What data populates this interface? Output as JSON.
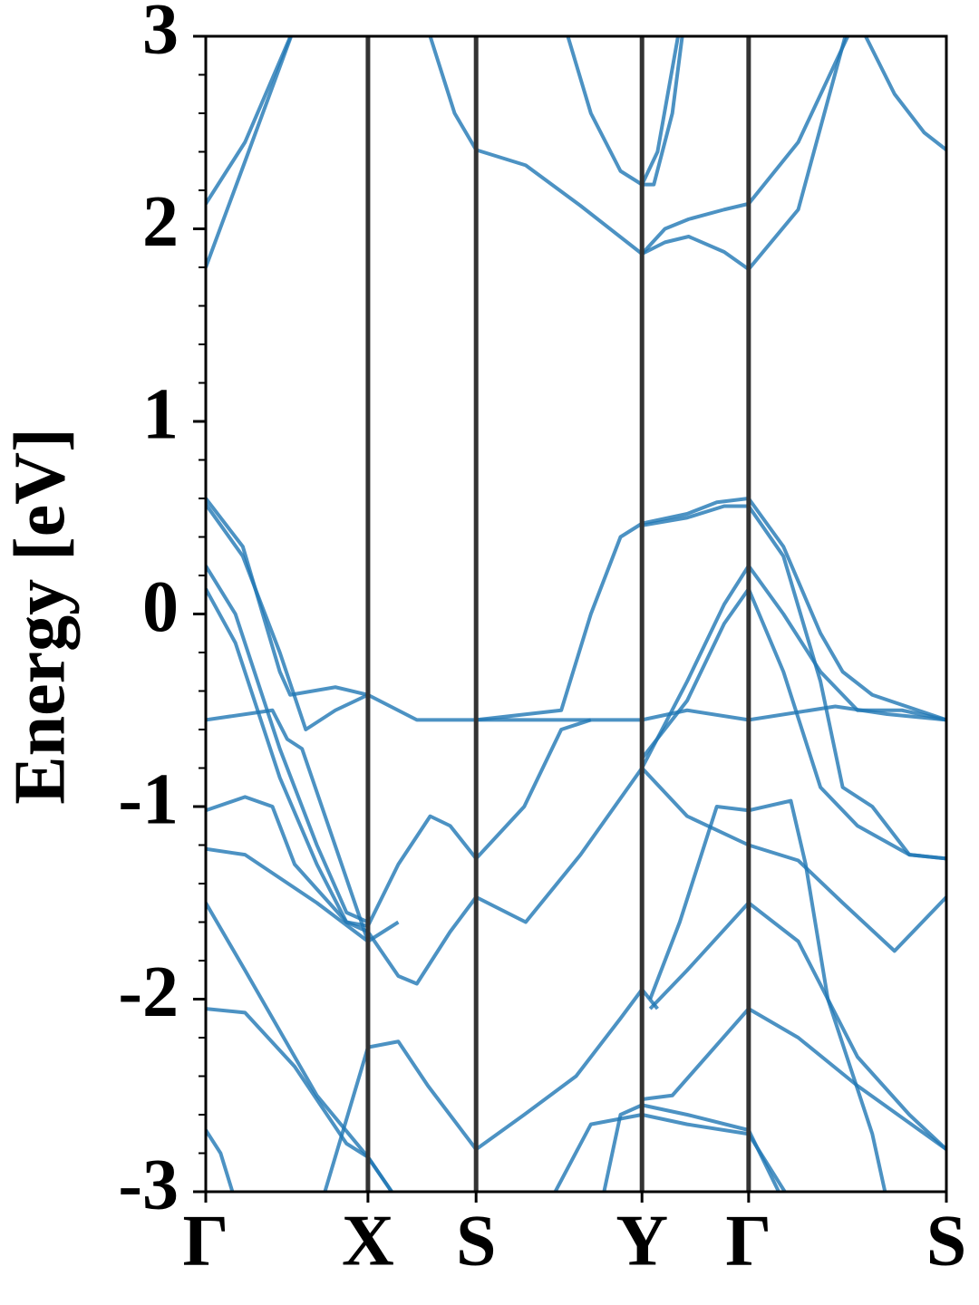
{
  "chart_data": {
    "type": "line",
    "ylabel": "Energy [eV]",
    "xlim": [
      0,
      1
    ],
    "ylim": [
      -3,
      3
    ],
    "xticks": [
      {
        "value": 0,
        "label": "Γ"
      },
      {
        "value": 0.219,
        "label": "X"
      },
      {
        "value": 0.365,
        "label": "S"
      },
      {
        "value": 0.589,
        "label": "Y"
      },
      {
        "value": 0.733,
        "label": "Γ"
      },
      {
        "value": 1,
        "label": "S"
      }
    ],
    "yticks": [
      -3,
      -2,
      -1,
      0,
      1,
      2,
      3
    ],
    "yminorticks": [
      -2.8,
      -2.6,
      -2.4,
      -2.2,
      -1.8,
      -1.6,
      -1.4,
      -1.2,
      -0.8,
      -0.6,
      -0.4,
      -0.2,
      0.2,
      0.4,
      0.6,
      0.8,
      1.2,
      1.4,
      1.6,
      1.8,
      2.2,
      2.4,
      2.6,
      2.8
    ],
    "vlines": true,
    "color": "#1f77b4",
    "line_alpha": 0.8,
    "series": [
      {
        "x": [
          0,
          0.053,
          0.12
        ],
        "values": [
          1.8,
          2.35,
          3.05
        ]
      },
      {
        "x": [
          0,
          0.053,
          0.12
        ],
        "values": [
          2.13,
          2.45,
          3.05
        ]
      },
      {
        "x": [
          0.303,
          0.336,
          0.365,
          0.432,
          0.506,
          0.589,
          0.62,
          0.652,
          0.7,
          0.733,
          0.8,
          0.867
        ],
        "values": [
          3.0,
          2.6,
          2.41,
          2.33,
          2.12,
          1.87,
          1.93,
          1.96,
          1.88,
          1.79,
          2.1,
          3.05
        ]
      },
      {
        "x": [
          0.589,
          0.62,
          0.652,
          0.7,
          0.733,
          0.8,
          0.873
        ],
        "values": [
          1.87,
          2.0,
          2.05,
          2.1,
          2.13,
          2.45,
          3.05
        ]
      },
      {
        "x": [
          0.485,
          0.52,
          0.56,
          0.589,
          0.61,
          0.64
        ],
        "values": [
          3.05,
          2.6,
          2.3,
          2.23,
          2.4,
          3.05
        ]
      },
      {
        "x": [
          0.589,
          0.605,
          0.63,
          0.645
        ],
        "values": [
          2.23,
          2.23,
          2.6,
          3.05
        ]
      },
      {
        "x": [
          0.891,
          0.93,
          0.97,
          1
        ],
        "values": [
          3.0,
          2.7,
          2.5,
          2.41
        ]
      },
      {
        "x": [
          0,
          0.05,
          0.1,
          0.114,
          0.175,
          0.219,
          0.285,
          0.365,
          0.48,
          0.52,
          0.56,
          0.589,
          0.65,
          0.69,
          0.733,
          0.78,
          0.83,
          0.86,
          0.9,
          1
        ],
        "values": [
          0.6,
          0.35,
          -0.3,
          -0.42,
          -0.38,
          -0.42,
          -0.55,
          -0.55,
          -0.5,
          0.0,
          0.4,
          0.47,
          0.52,
          0.58,
          0.6,
          0.35,
          -0.1,
          -0.3,
          -0.42,
          -0.55
        ]
      },
      {
        "x": [
          0,
          0.05,
          0.1,
          0.135,
          0.175,
          0.219
        ],
        "values": [
          0.57,
          0.3,
          -0.2,
          -0.6,
          -0.5,
          -0.42
        ]
      },
      {
        "x": [
          0.589,
          0.65,
          0.7,
          0.733,
          0.78,
          0.83,
          0.86,
          0.9,
          0.95,
          1
        ],
        "values": [
          0.46,
          0.5,
          0.56,
          0.56,
          0.3,
          -0.35,
          -0.9,
          -1.0,
          -1.25,
          -1.27
        ]
      },
      {
        "x": [
          0,
          0.04,
          0.1,
          0.15,
          0.19,
          0.219
        ],
        "values": [
          0.25,
          0.0,
          -0.7,
          -1.2,
          -1.55,
          -1.6
        ]
      },
      {
        "x": [
          0,
          0.04,
          0.1,
          0.15,
          0.19,
          0.219
        ],
        "values": [
          0.13,
          -0.15,
          -0.85,
          -1.3,
          -1.6,
          -1.65
        ]
      },
      {
        "x": [
          0.589,
          0.65,
          0.7,
          0.733,
          0.78,
          0.83,
          0.88,
          0.94,
          1
        ],
        "values": [
          -0.8,
          -0.35,
          0.05,
          0.25,
          0.0,
          -0.3,
          -0.5,
          -0.5,
          -0.55
        ]
      },
      {
        "x": [
          0.589,
          0.65,
          0.7,
          0.733,
          0.78,
          0.83,
          0.88,
          0.95,
          1
        ],
        "values": [
          -0.75,
          -0.45,
          -0.05,
          0.13,
          -0.3,
          -0.9,
          -1.1,
          -1.25,
          -1.27
        ]
      },
      {
        "x": [
          0,
          0.09,
          0.11,
          0.13,
          0.219
        ],
        "values": [
          -0.55,
          -0.5,
          -0.65,
          -0.7,
          -1.7
        ]
      },
      {
        "x": [
          0.365,
          0.48,
          0.589,
          0.65,
          0.733,
          0.85,
          0.92,
          1
        ],
        "values": [
          -0.55,
          -0.55,
          -0.55,
          -0.5,
          -0.55,
          -0.48,
          -0.52,
          -0.55
        ]
      },
      {
        "x": [
          0.219,
          0.26,
          0.303,
          0.33,
          0.365,
          0.43,
          0.48,
          0.52
        ],
        "values": [
          -1.62,
          -1.3,
          -1.05,
          -1.1,
          -1.27,
          -1.0,
          -0.6,
          -0.55
        ]
      },
      {
        "x": [
          0.219,
          0.26,
          0.285,
          0.33,
          0.365,
          0.432,
          0.506,
          0.589,
          0.65,
          0.733,
          0.8,
          0.86,
          0.93,
          1
        ],
        "values": [
          -1.65,
          -1.88,
          -1.92,
          -1.65,
          -1.47,
          -1.6,
          -1.25,
          -0.8,
          -1.05,
          -1.2,
          -1.28,
          -1.5,
          -1.75,
          -1.47
        ]
      },
      {
        "x": [
          0,
          0.053,
          0.09,
          0.12,
          0.19,
          0.219
        ],
        "values": [
          -1.02,
          -0.95,
          -1.0,
          -1.3,
          -1.6,
          -1.62
        ]
      },
      {
        "x": [
          0.6,
          0.64,
          0.69,
          0.733,
          0.79,
          0.81,
          0.84,
          0.9,
          0.92
        ],
        "values": [
          -2.0,
          -1.6,
          -1.0,
          -1.02,
          -0.97,
          -1.3,
          -2.0,
          -2.7,
          -3.05
        ]
      },
      {
        "x": [
          0,
          0.053,
          0.15,
          0.219,
          0.26
        ],
        "values": [
          -1.22,
          -1.25,
          -1.5,
          -1.7,
          -1.6
        ]
      },
      {
        "x": [
          0,
          0.053,
          0.15,
          0.219,
          0.26
        ],
        "values": [
          -1.5,
          -1.85,
          -2.5,
          -2.82,
          -3.05
        ]
      },
      {
        "x": [
          0.6,
          0.65,
          0.733,
          0.8,
          0.88,
          0.95,
          1
        ],
        "values": [
          -2.05,
          -1.85,
          -1.5,
          -1.7,
          -2.3,
          -2.6,
          -2.78
        ]
      },
      {
        "x": [
          0,
          0.053,
          0.12,
          0.19,
          0.219,
          0.26
        ],
        "values": [
          -2.05,
          -2.07,
          -2.35,
          -2.75,
          -2.82,
          -3.05
        ]
      },
      {
        "x": [
          0.589,
          0.63,
          0.733,
          0.8,
          0.88,
          1
        ],
        "values": [
          -2.52,
          -2.5,
          -2.05,
          -2.2,
          -2.45,
          -2.78
        ]
      },
      {
        "x": [
          0.157,
          0.219,
          0.26,
          0.3,
          0.365,
          0.43,
          0.5,
          0.56,
          0.589,
          0.61
        ],
        "values": [
          -3.05,
          -2.25,
          -2.22,
          -2.45,
          -2.78,
          -2.6,
          -2.4,
          -2.1,
          -1.95,
          -2.05
        ]
      },
      {
        "x": [
          0,
          0.02,
          0.04
        ],
        "values": [
          -2.68,
          -2.8,
          -3.05
        ]
      },
      {
        "x": [
          0.465,
          0.52,
          0.589,
          0.65,
          0.733,
          0.79
        ],
        "values": [
          -3.05,
          -2.65,
          -2.6,
          -2.65,
          -2.7,
          -3.05
        ]
      },
      {
        "x": [
          0.535,
          0.56,
          0.589,
          0.65,
          0.733,
          0.78
        ],
        "values": [
          -3.05,
          -2.6,
          -2.55,
          -2.6,
          -2.68,
          -3.05
        ]
      }
    ]
  }
}
